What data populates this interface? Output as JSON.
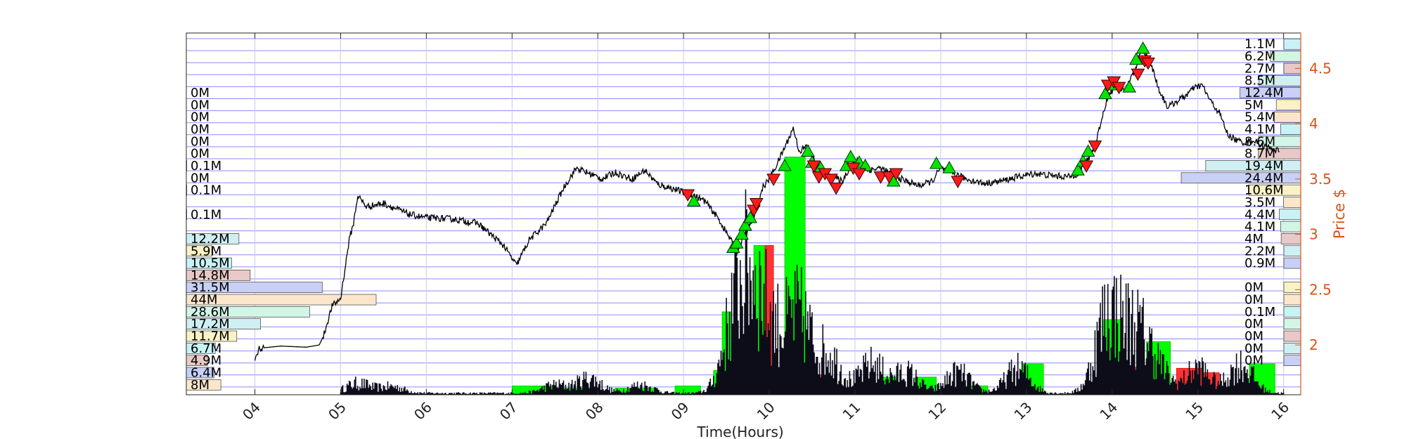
{
  "chart_data": {
    "type": "line",
    "xlabel": "Time(Hours)",
    "ylabel": "Price $",
    "xlim": [
      3.2,
      16.2
    ],
    "ylim": [
      1.55,
      4.82
    ],
    "x_ticks": [
      4,
      5,
      6,
      7,
      8,
      9,
      10,
      11,
      12,
      13,
      14,
      15,
      16
    ],
    "x_tick_labels": [
      "04",
      "05",
      "06",
      "07",
      "08",
      "09",
      "10",
      "11",
      "12",
      "13",
      "14",
      "15",
      "16"
    ],
    "y_ticks": [
      2,
      2.5,
      3,
      3.5,
      4,
      4.5
    ],
    "y_tick_labels": [
      "2",
      "2.5",
      "3",
      "3.5",
      "4",
      "4.5"
    ],
    "grid": true,
    "colors": {
      "price_line": "#000000",
      "axis_right": "#d95319",
      "grid": "#8c8cf0",
      "buy_marker": "#00e600",
      "sell_marker": "#ff1a1a",
      "volume_dark": "#0d0d1a",
      "volume_up": "#00ff00",
      "volume_down": "#ff3333"
    },
    "price_series": {
      "name": "Price",
      "points": [
        [
          4.0,
          1.85
        ],
        [
          4.05,
          1.97
        ],
        [
          4.3,
          1.99
        ],
        [
          4.6,
          1.98
        ],
        [
          4.75,
          2.0
        ],
        [
          4.8,
          2.08
        ],
        [
          4.9,
          2.35
        ],
        [
          5.0,
          2.42
        ],
        [
          5.1,
          2.95
        ],
        [
          5.15,
          3.1
        ],
        [
          5.2,
          3.35
        ],
        [
          5.3,
          3.25
        ],
        [
          5.5,
          3.28
        ],
        [
          5.8,
          3.18
        ],
        [
          6.0,
          3.15
        ],
        [
          6.3,
          3.14
        ],
        [
          6.6,
          3.1
        ],
        [
          6.9,
          2.9
        ],
        [
          7.05,
          2.72
        ],
        [
          7.2,
          2.95
        ],
        [
          7.4,
          3.1
        ],
        [
          7.6,
          3.42
        ],
        [
          7.75,
          3.6
        ],
        [
          7.9,
          3.55
        ],
        [
          8.05,
          3.5
        ],
        [
          8.2,
          3.56
        ],
        [
          8.4,
          3.5
        ],
        [
          8.55,
          3.58
        ],
        [
          8.7,
          3.45
        ],
        [
          8.85,
          3.42
        ],
        [
          9.0,
          3.38
        ],
        [
          9.1,
          3.36
        ],
        [
          9.25,
          3.3
        ],
        [
          9.4,
          3.15
        ],
        [
          9.55,
          2.95
        ],
        [
          9.62,
          2.83
        ],
        [
          9.75,
          3.05
        ],
        [
          9.85,
          3.2
        ],
        [
          9.92,
          3.42
        ],
        [
          10.0,
          3.5
        ],
        [
          10.1,
          3.65
        ],
        [
          10.2,
          3.82
        ],
        [
          10.28,
          3.96
        ],
        [
          10.35,
          3.75
        ],
        [
          10.45,
          3.8
        ],
        [
          10.55,
          3.62
        ],
        [
          10.65,
          3.56
        ],
        [
          10.75,
          3.52
        ],
        [
          10.85,
          3.48
        ],
        [
          10.95,
          3.62
        ],
        [
          11.05,
          3.68
        ],
        [
          11.15,
          3.58
        ],
        [
          11.3,
          3.6
        ],
        [
          11.45,
          3.53
        ],
        [
          11.6,
          3.48
        ],
        [
          11.75,
          3.44
        ],
        [
          11.9,
          3.48
        ],
        [
          12.0,
          3.6
        ],
        [
          12.15,
          3.55
        ],
        [
          12.3,
          3.5
        ],
        [
          12.5,
          3.46
        ],
        [
          12.7,
          3.48
        ],
        [
          12.9,
          3.52
        ],
        [
          13.1,
          3.55
        ],
        [
          13.3,
          3.53
        ],
        [
          13.5,
          3.52
        ],
        [
          13.6,
          3.55
        ],
        [
          13.7,
          3.65
        ],
        [
          13.8,
          3.8
        ],
        [
          13.88,
          4.05
        ],
        [
          13.95,
          4.25
        ],
        [
          14.05,
          4.35
        ],
        [
          14.15,
          4.3
        ],
        [
          14.25,
          4.45
        ],
        [
          14.35,
          4.68
        ],
        [
          14.45,
          4.55
        ],
        [
          14.55,
          4.3
        ],
        [
          14.65,
          4.15
        ],
        [
          14.75,
          4.2
        ],
        [
          14.85,
          4.25
        ],
        [
          14.95,
          4.32
        ],
        [
          15.05,
          4.35
        ],
        [
          15.15,
          4.2
        ],
        [
          15.25,
          4.1
        ],
        [
          15.35,
          3.9
        ],
        [
          15.45,
          3.85
        ],
        [
          15.55,
          3.83
        ],
        [
          15.65,
          3.85
        ],
        [
          15.75,
          3.8
        ],
        [
          15.85,
          3.78
        ],
        [
          15.95,
          3.75
        ]
      ]
    },
    "buy_markers": [
      [
        9.12,
        3.3
      ],
      [
        9.58,
        2.88
      ],
      [
        9.62,
        2.92
      ],
      [
        9.68,
        3.0
      ],
      [
        9.72,
        3.08
      ],
      [
        9.78,
        3.15
      ],
      [
        10.18,
        3.62
      ],
      [
        10.45,
        3.75
      ],
      [
        10.5,
        3.65
      ],
      [
        10.6,
        3.6
      ],
      [
        10.9,
        3.62
      ],
      [
        10.95,
        3.7
      ],
      [
        11.05,
        3.65
      ],
      [
        11.12,
        3.62
      ],
      [
        11.45,
        3.48
      ],
      [
        11.95,
        3.64
      ],
      [
        12.1,
        3.6
      ],
      [
        13.6,
        3.58
      ],
      [
        13.66,
        3.66
      ],
      [
        13.72,
        3.75
      ],
      [
        13.92,
        4.27
      ],
      [
        14.0,
        4.35
      ],
      [
        14.2,
        4.33
      ],
      [
        14.28,
        4.58
      ],
      [
        14.36,
        4.68
      ]
    ],
    "sell_markers": [
      [
        9.05,
        3.36
      ],
      [
        9.82,
        3.22
      ],
      [
        9.85,
        3.28
      ],
      [
        10.05,
        3.5
      ],
      [
        10.52,
        3.62
      ],
      [
        10.58,
        3.52
      ],
      [
        10.65,
        3.55
      ],
      [
        10.72,
        3.5
      ],
      [
        10.78,
        3.42
      ],
      [
        10.98,
        3.6
      ],
      [
        11.05,
        3.55
      ],
      [
        11.3,
        3.52
      ],
      [
        11.4,
        3.52
      ],
      [
        11.48,
        3.55
      ],
      [
        12.2,
        3.48
      ],
      [
        13.7,
        3.62
      ],
      [
        13.8,
        3.8
      ],
      [
        13.95,
        4.35
      ],
      [
        14.02,
        4.38
      ],
      [
        14.08,
        4.33
      ],
      [
        14.3,
        4.45
      ],
      [
        14.38,
        4.57
      ],
      [
        14.42,
        4.55
      ]
    ],
    "volume_profile_left": [
      {
        "label": "0M",
        "level": 4.28,
        "value": 0
      },
      {
        "label": "0M",
        "level": 4.17,
        "value": 0
      },
      {
        "label": "0M",
        "level": 4.06,
        "value": 0
      },
      {
        "label": "0M",
        "level": 3.95,
        "value": 0
      },
      {
        "label": "0M",
        "level": 3.84,
        "value": 0
      },
      {
        "label": "0M",
        "level": 3.73,
        "value": 0
      },
      {
        "label": "0.1M",
        "level": 3.62,
        "value": 0.1
      },
      {
        "label": "0M",
        "level": 3.51,
        "value": 0
      },
      {
        "label": "0.1M",
        "level": 3.4,
        "value": 0.1
      },
      {
        "label": "0.1M",
        "level": 3.18,
        "value": 0.1
      },
      {
        "label": "12.2M",
        "level": 2.96,
        "value": 12.2
      },
      {
        "label": "5.9M",
        "level": 2.85,
        "value": 5.9
      },
      {
        "label": "10.5M",
        "level": 2.74,
        "value": 10.5
      },
      {
        "label": "14.8M",
        "level": 2.63,
        "value": 14.8
      },
      {
        "label": "31.5M",
        "level": 2.52,
        "value": 31.5
      },
      {
        "label": "44M",
        "level": 2.41,
        "value": 44
      },
      {
        "label": "28.6M",
        "level": 2.3,
        "value": 28.6
      },
      {
        "label": "17.2M",
        "level": 2.19,
        "value": 17.2
      },
      {
        "label": "11.7M",
        "level": 2.08,
        "value": 11.7
      },
      {
        "label": "6.7M",
        "level": 1.97,
        "value": 6.7
      },
      {
        "label": "4.9M",
        "level": 1.86,
        "value": 4.9
      },
      {
        "label": "6.4M",
        "level": 1.75,
        "value": 6.4
      },
      {
        "label": "8M",
        "level": 1.64,
        "value": 8
      }
    ],
    "volume_profile_right": [
      {
        "label": "1.1M",
        "level": 4.72,
        "value": 1.1
      },
      {
        "label": "6.2M",
        "level": 4.61,
        "value": 6.2
      },
      {
        "label": "2.7M",
        "level": 4.5,
        "value": 2.7
      },
      {
        "label": "8.5M",
        "level": 4.39,
        "value": 8.5
      },
      {
        "label": "12.4M",
        "level": 4.28,
        "value": 12.4
      },
      {
        "label": "5M",
        "level": 4.17,
        "value": 5
      },
      {
        "label": "5.4M",
        "level": 4.06,
        "value": 5.4
      },
      {
        "label": "4.1M",
        "level": 3.95,
        "value": 4.1
      },
      {
        "label": "8.6M",
        "level": 3.84,
        "value": 8.6
      },
      {
        "label": "8.7M",
        "level": 3.73,
        "value": 8.7
      },
      {
        "label": "19.4M",
        "level": 3.62,
        "value": 19.4
      },
      {
        "label": "24.4M",
        "level": 3.51,
        "value": 24.4
      },
      {
        "label": "10.6M",
        "level": 3.4,
        "value": 10.6
      },
      {
        "label": "3.5M",
        "level": 3.29,
        "value": 3.5
      },
      {
        "label": "4.4M",
        "level": 3.18,
        "value": 4.4
      },
      {
        "label": "4.1M",
        "level": 3.07,
        "value": 4.1
      },
      {
        "label": "4M",
        "level": 2.96,
        "value": 4
      },
      {
        "label": "2.2M",
        "level": 2.85,
        "value": 2.2
      },
      {
        "label": "0.9M",
        "level": 2.74,
        "value": 0.9
      },
      {
        "label": "0M",
        "level": 2.52,
        "value": 0
      },
      {
        "label": "0M",
        "level": 2.41,
        "value": 0
      },
      {
        "label": "0.1M",
        "level": 2.3,
        "value": 0.1
      },
      {
        "label": "0M",
        "level": 2.19,
        "value": 0
      },
      {
        "label": "0M",
        "level": 2.08,
        "value": 0
      },
      {
        "label": "0M",
        "level": 1.97,
        "value": 0
      },
      {
        "label": "0M",
        "level": 1.86,
        "value": 0
      }
    ],
    "volume_blocks": [
      {
        "start": 7.0,
        "end": 7.5,
        "height": 0.08,
        "side": "up"
      },
      {
        "start": 7.5,
        "end": 8.0,
        "height": 0.06,
        "side": "up"
      },
      {
        "start": 8.2,
        "end": 8.7,
        "height": 0.06,
        "side": "up"
      },
      {
        "start": 8.9,
        "end": 9.2,
        "height": 0.08,
        "side": "up"
      },
      {
        "start": 9.35,
        "end": 9.45,
        "height": 0.22,
        "side": "up"
      },
      {
        "start": 9.45,
        "end": 9.55,
        "height": 0.75,
        "side": "up"
      },
      {
        "start": 9.82,
        "end": 9.95,
        "height": 1.35,
        "side": "up"
      },
      {
        "start": 9.95,
        "end": 10.05,
        "height": 1.35,
        "side": "down"
      },
      {
        "start": 10.18,
        "end": 10.42,
        "height": 2.15,
        "side": "up"
      },
      {
        "start": 10.42,
        "end": 10.68,
        "height": 0.18,
        "side": "down"
      },
      {
        "start": 11.3,
        "end": 11.5,
        "height": 0.16,
        "side": "up"
      },
      {
        "start": 11.7,
        "end": 11.95,
        "height": 0.16,
        "side": "up"
      },
      {
        "start": 12.35,
        "end": 12.55,
        "height": 0.08,
        "side": "up"
      },
      {
        "start": 12.95,
        "end": 13.2,
        "height": 0.28,
        "side": "up"
      },
      {
        "start": 13.9,
        "end": 14.1,
        "height": 0.68,
        "side": "up"
      },
      {
        "start": 14.25,
        "end": 14.4,
        "height": 0.25,
        "side": "down"
      },
      {
        "start": 14.4,
        "end": 14.68,
        "height": 0.48,
        "side": "up"
      },
      {
        "start": 14.75,
        "end": 15.05,
        "height": 0.24,
        "side": "down"
      },
      {
        "start": 15.05,
        "end": 15.25,
        "height": 0.2,
        "side": "down"
      },
      {
        "start": 15.6,
        "end": 15.9,
        "height": 0.28,
        "side": "up"
      }
    ]
  }
}
